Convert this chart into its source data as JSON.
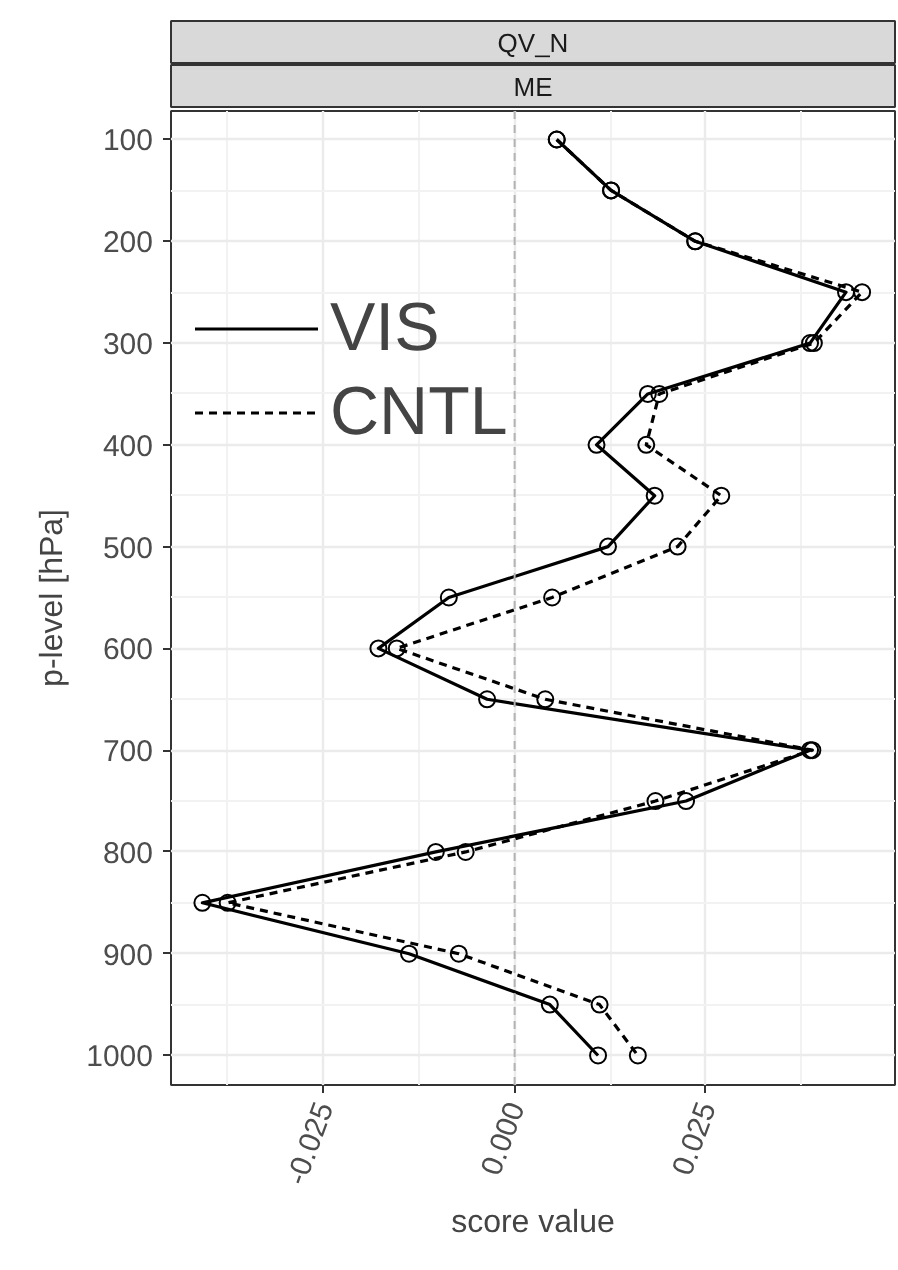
{
  "chart_data": {
    "type": "line",
    "title": "QV_N",
    "subtitle": "ME",
    "xlabel": "score value",
    "ylabel": "p-level [hPa]",
    "x": [
      100,
      150,
      200,
      250,
      300,
      350,
      400,
      450,
      500,
      550,
      600,
      650,
      700,
      750,
      800,
      850,
      900,
      950,
      1000
    ],
    "series": [
      {
        "name": "VIS",
        "color": "#000000",
        "line_style": "solid",
        "values": [
          0.0055,
          0.0126,
          0.0236,
          0.0433,
          0.0386,
          0.0174,
          0.0107,
          0.0183,
          0.0122,
          -0.0086,
          -0.0178,
          -0.0036,
          0.0386,
          0.0224,
          -0.0103,
          -0.0408,
          -0.0138,
          0.0046,
          0.0109
        ]
      },
      {
        "name": "CNTL",
        "color": "#000000",
        "line_style": "dashed",
        "values": [
          0.0055,
          0.0126,
          0.0236,
          0.0454,
          0.0391,
          0.0189,
          0.0172,
          0.027,
          0.0213,
          0.0049,
          -0.0154,
          0.004,
          0.0389,
          0.0184,
          -0.0064,
          -0.0375,
          -0.0073,
          0.0111,
          0.0161
        ]
      }
    ],
    "orientation": "horizontal",
    "marker": "circle",
    "xlim": [
      -0.0449,
      0.0497
    ],
    "xticks": [
      -0.025,
      {
        "value": 0,
        "label": "0.000"
      },
      0.025
    ],
    "ylim": [
      1029,
      72
    ],
    "yticks": [
      100,
      200,
      300,
      400,
      500,
      600,
      700,
      800,
      900,
      1000
    ],
    "ref_lines": [
      {
        "axis": "x",
        "value": 0,
        "color": "#b3b3b3",
        "line_style": "dashed"
      }
    ],
    "grid": true,
    "legend": "top left"
  }
}
